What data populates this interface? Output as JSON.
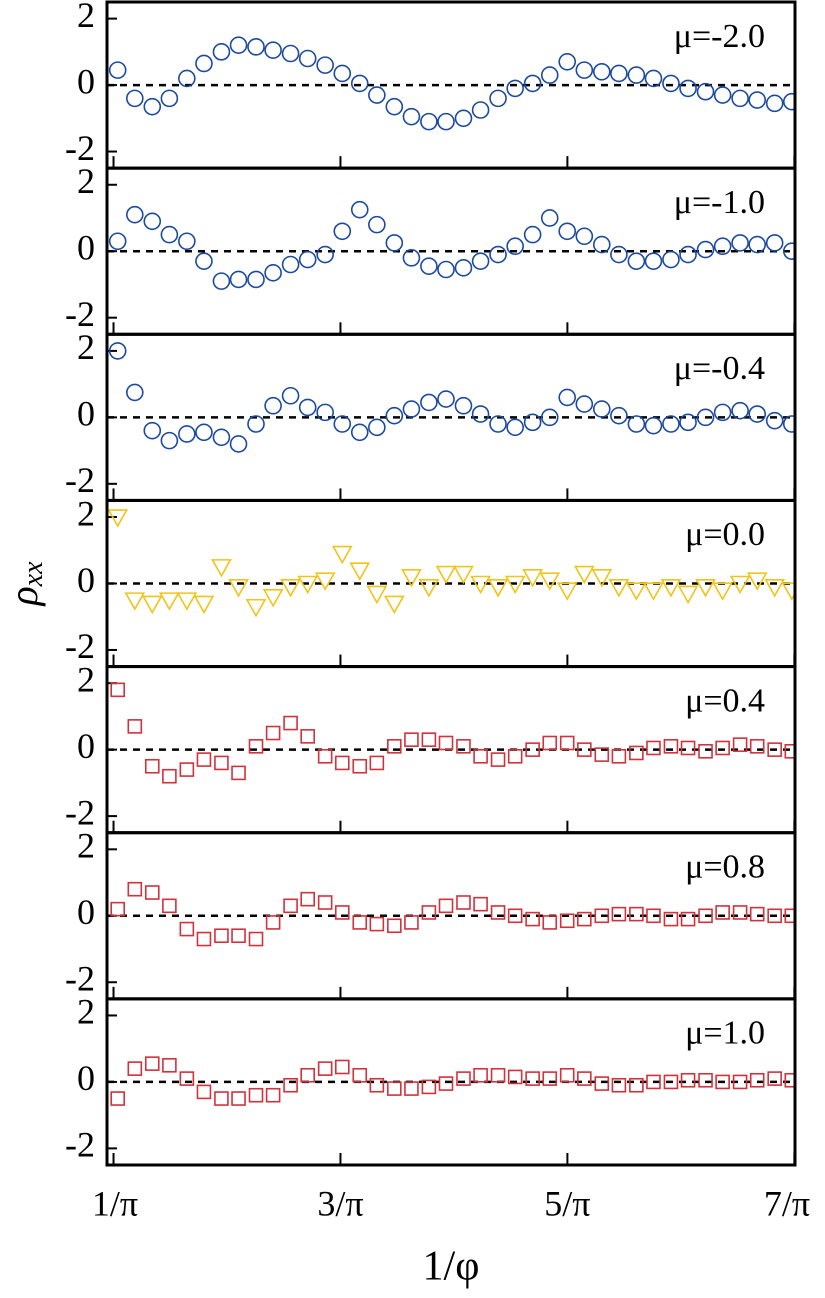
{
  "chart_data": [
    {
      "type": "scatter",
      "annotation": "μ=-2.0",
      "xlim": [
        0.3,
        2.23
      ],
      "ylim": [
        -2.5,
        2.5
      ],
      "yticks": [
        -2,
        0,
        2
      ],
      "x": [
        0.33,
        0.378,
        0.427,
        0.475,
        0.524,
        0.572,
        0.621,
        0.669,
        0.718,
        0.766,
        0.815,
        0.863,
        0.912,
        0.96,
        1.009,
        1.057,
        1.106,
        1.154,
        1.203,
        1.251,
        1.3,
        1.348,
        1.397,
        1.445,
        1.494,
        1.542,
        1.591,
        1.639,
        1.688,
        1.736,
        1.785,
        1.833,
        1.882,
        1.93,
        1.979,
        2.027,
        2.076,
        2.124,
        2.173,
        2.221
      ],
      "series": [
        {
          "color": "#1b4aa0",
          "marker": "circle",
          "values": [
            0.45,
            -0.4,
            -0.65,
            -0.4,
            0.2,
            0.65,
            1.0,
            1.2,
            1.15,
            1.05,
            0.95,
            0.8,
            0.6,
            0.35,
            0.05,
            -0.3,
            -0.65,
            -0.95,
            -1.1,
            -1.1,
            -1.0,
            -0.75,
            -0.4,
            -0.1,
            0.05,
            0.3,
            0.7,
            0.45,
            0.4,
            0.35,
            0.3,
            0.2,
            0.05,
            -0.1,
            -0.2,
            -0.3,
            -0.4,
            -0.45,
            -0.55,
            -0.5
          ]
        }
      ]
    },
    {
      "type": "scatter",
      "annotation": "μ=-1.0",
      "xlim": [
        0.3,
        2.23
      ],
      "ylim": [
        -2.5,
        2.5
      ],
      "yticks": [
        -2,
        0,
        2
      ],
      "x": [
        0.33,
        0.378,
        0.427,
        0.475,
        0.524,
        0.572,
        0.621,
        0.669,
        0.718,
        0.766,
        0.815,
        0.863,
        0.912,
        0.96,
        1.009,
        1.057,
        1.106,
        1.154,
        1.203,
        1.251,
        1.3,
        1.348,
        1.397,
        1.445,
        1.494,
        1.542,
        1.591,
        1.639,
        1.688,
        1.736,
        1.785,
        1.833,
        1.882,
        1.93,
        1.979,
        2.027,
        2.076,
        2.124,
        2.173,
        2.221
      ],
      "series": [
        {
          "color": "#1b4aa0",
          "marker": "circle",
          "values": [
            0.3,
            1.1,
            0.9,
            0.5,
            0.3,
            -0.3,
            -0.9,
            -0.85,
            -0.85,
            -0.65,
            -0.4,
            -0.25,
            -0.1,
            0.6,
            1.25,
            0.8,
            0.25,
            -0.2,
            -0.45,
            -0.55,
            -0.5,
            -0.3,
            -0.1,
            0.15,
            0.5,
            1.0,
            0.6,
            0.45,
            0.2,
            -0.1,
            -0.3,
            -0.3,
            -0.25,
            -0.1,
            0.05,
            0.15,
            0.25,
            0.2,
            0.25,
            0.0
          ]
        }
      ]
    },
    {
      "type": "scatter",
      "annotation": "μ=-0.4",
      "xlim": [
        0.3,
        2.23
      ],
      "ylim": [
        -2.5,
        2.5
      ],
      "yticks": [
        -2,
        0,
        2
      ],
      "x": [
        0.33,
        0.378,
        0.427,
        0.475,
        0.524,
        0.572,
        0.621,
        0.669,
        0.718,
        0.766,
        0.815,
        0.863,
        0.912,
        0.96,
        1.009,
        1.057,
        1.106,
        1.154,
        1.203,
        1.251,
        1.3,
        1.348,
        1.397,
        1.445,
        1.494,
        1.542,
        1.591,
        1.639,
        1.688,
        1.736,
        1.785,
        1.833,
        1.882,
        1.93,
        1.979,
        2.027,
        2.076,
        2.124,
        2.173,
        2.221
      ],
      "series": [
        {
          "color": "#1b4aa0",
          "marker": "circle",
          "values": [
            2.0,
            0.75,
            -0.4,
            -0.7,
            -0.5,
            -0.45,
            -0.6,
            -0.8,
            -0.2,
            0.35,
            0.65,
            0.3,
            0.15,
            -0.2,
            -0.45,
            -0.3,
            0.05,
            0.25,
            0.45,
            0.55,
            0.35,
            0.1,
            -0.2,
            -0.3,
            -0.15,
            0.0,
            0.6,
            0.4,
            0.25,
            0.05,
            -0.2,
            -0.25,
            -0.2,
            -0.15,
            0.0,
            0.15,
            0.2,
            0.1,
            -0.1,
            -0.2
          ]
        }
      ]
    },
    {
      "type": "scatter",
      "annotation": "μ=0.0",
      "ylabel": "ρxx",
      "xlim": [
        0.3,
        2.23
      ],
      "ylim": [
        -2.5,
        2.5
      ],
      "yticks": [
        -2,
        0,
        2
      ],
      "x": [
        0.33,
        0.378,
        0.427,
        0.475,
        0.524,
        0.572,
        0.621,
        0.669,
        0.718,
        0.766,
        0.815,
        0.863,
        0.912,
        0.96,
        1.009,
        1.057,
        1.106,
        1.154,
        1.203,
        1.251,
        1.3,
        1.348,
        1.397,
        1.445,
        1.494,
        1.542,
        1.591,
        1.639,
        1.688,
        1.736,
        1.785,
        1.833,
        1.882,
        1.93,
        1.979,
        2.027,
        2.076,
        2.124,
        2.173,
        2.221
      ],
      "series": [
        {
          "color": "#f0c419",
          "marker": "triangle-down",
          "values": [
            2.0,
            -0.5,
            -0.6,
            -0.5,
            -0.5,
            -0.6,
            0.5,
            -0.1,
            -0.7,
            -0.4,
            -0.1,
            0.0,
            0.1,
            0.9,
            0.4,
            -0.3,
            -0.6,
            0.2,
            -0.1,
            0.3,
            0.3,
            0.0,
            -0.1,
            0.0,
            0.2,
            0.1,
            -0.2,
            0.3,
            0.2,
            -0.1,
            -0.2,
            -0.2,
            -0.1,
            -0.3,
            -0.1,
            -0.2,
            0.0,
            0.1,
            -0.1,
            -0.2
          ]
        }
      ]
    },
    {
      "type": "scatter",
      "annotation": "μ=0.4",
      "xlim": [
        0.3,
        2.23
      ],
      "ylim": [
        -2.5,
        2.5
      ],
      "yticks": [
        -2,
        0,
        2
      ],
      "x": [
        0.33,
        0.378,
        0.427,
        0.475,
        0.524,
        0.572,
        0.621,
        0.669,
        0.718,
        0.766,
        0.815,
        0.863,
        0.912,
        0.96,
        1.009,
        1.057,
        1.106,
        1.154,
        1.203,
        1.251,
        1.3,
        1.348,
        1.397,
        1.445,
        1.494,
        1.542,
        1.591,
        1.639,
        1.688,
        1.736,
        1.785,
        1.833,
        1.882,
        1.93,
        1.979,
        2.027,
        2.076,
        2.124,
        2.173,
        2.221
      ],
      "series": [
        {
          "color": "#d1323c",
          "marker": "square",
          "values": [
            1.8,
            0.7,
            -0.5,
            -0.8,
            -0.6,
            -0.3,
            -0.4,
            -0.7,
            0.1,
            0.5,
            0.8,
            0.4,
            -0.2,
            -0.4,
            -0.5,
            -0.4,
            0.1,
            0.3,
            0.3,
            0.2,
            0.1,
            -0.2,
            -0.3,
            -0.2,
            0.0,
            0.2,
            0.2,
            0.0,
            -0.15,
            -0.2,
            -0.1,
            0.05,
            0.1,
            0.05,
            -0.05,
            0.05,
            0.15,
            0.1,
            0.0,
            -0.05
          ]
        }
      ]
    },
    {
      "type": "scatter",
      "annotation": "μ=0.8",
      "xlim": [
        0.3,
        2.23
      ],
      "ylim": [
        -2.5,
        2.5
      ],
      "yticks": [
        -2,
        0,
        2
      ],
      "x": [
        0.33,
        0.378,
        0.427,
        0.475,
        0.524,
        0.572,
        0.621,
        0.669,
        0.718,
        0.766,
        0.815,
        0.863,
        0.912,
        0.96,
        1.009,
        1.057,
        1.106,
        1.154,
        1.203,
        1.251,
        1.3,
        1.348,
        1.397,
        1.445,
        1.494,
        1.542,
        1.591,
        1.639,
        1.688,
        1.736,
        1.785,
        1.833,
        1.882,
        1.93,
        1.979,
        2.027,
        2.076,
        2.124,
        2.173,
        2.221
      ],
      "series": [
        {
          "color": "#d1323c",
          "marker": "square",
          "values": [
            0.2,
            0.8,
            0.7,
            0.3,
            -0.4,
            -0.7,
            -0.6,
            -0.6,
            -0.7,
            -0.2,
            0.3,
            0.5,
            0.4,
            0.1,
            -0.2,
            -0.25,
            -0.3,
            -0.2,
            0.1,
            0.3,
            0.4,
            0.35,
            0.1,
            0.0,
            -0.1,
            -0.2,
            -0.15,
            -0.1,
            0.0,
            0.05,
            0.05,
            0.0,
            -0.1,
            -0.1,
            0.0,
            0.1,
            0.1,
            0.05,
            0.0,
            0.0
          ]
        }
      ]
    },
    {
      "type": "scatter",
      "annotation": "μ=1.0",
      "xlabel": "1/φ",
      "xlim": [
        0.3,
        2.23
      ],
      "ylim": [
        -2.5,
        2.5
      ],
      "yticks": [
        -2,
        0,
        2
      ],
      "xticks": [
        {
          "value": 0.3183,
          "label": "1/π"
        },
        {
          "value": 0.9549,
          "label": "3/π"
        },
        {
          "value": 1.5915,
          "label": "5/π"
        },
        {
          "value": 2.2282,
          "label": "7/π"
        }
      ],
      "x": [
        0.33,
        0.378,
        0.427,
        0.475,
        0.524,
        0.572,
        0.621,
        0.669,
        0.718,
        0.766,
        0.815,
        0.863,
        0.912,
        0.96,
        1.009,
        1.057,
        1.106,
        1.154,
        1.203,
        1.251,
        1.3,
        1.348,
        1.397,
        1.445,
        1.494,
        1.542,
        1.591,
        1.639,
        1.688,
        1.736,
        1.785,
        1.833,
        1.882,
        1.93,
        1.979,
        2.027,
        2.076,
        2.124,
        2.173,
        2.221
      ],
      "series": [
        {
          "color": "#d1323c",
          "marker": "square",
          "values": [
            -0.5,
            0.4,
            0.55,
            0.5,
            0.1,
            -0.3,
            -0.5,
            -0.5,
            -0.4,
            -0.4,
            -0.1,
            0.2,
            0.4,
            0.45,
            0.2,
            -0.1,
            -0.2,
            -0.2,
            -0.15,
            -0.05,
            0.1,
            0.2,
            0.2,
            0.15,
            0.1,
            0.1,
            0.2,
            0.1,
            -0.05,
            -0.1,
            -0.1,
            0.0,
            0.0,
            0.05,
            0.05,
            0.0,
            0.0,
            0.05,
            0.1,
            0.05
          ]
        }
      ]
    }
  ]
}
